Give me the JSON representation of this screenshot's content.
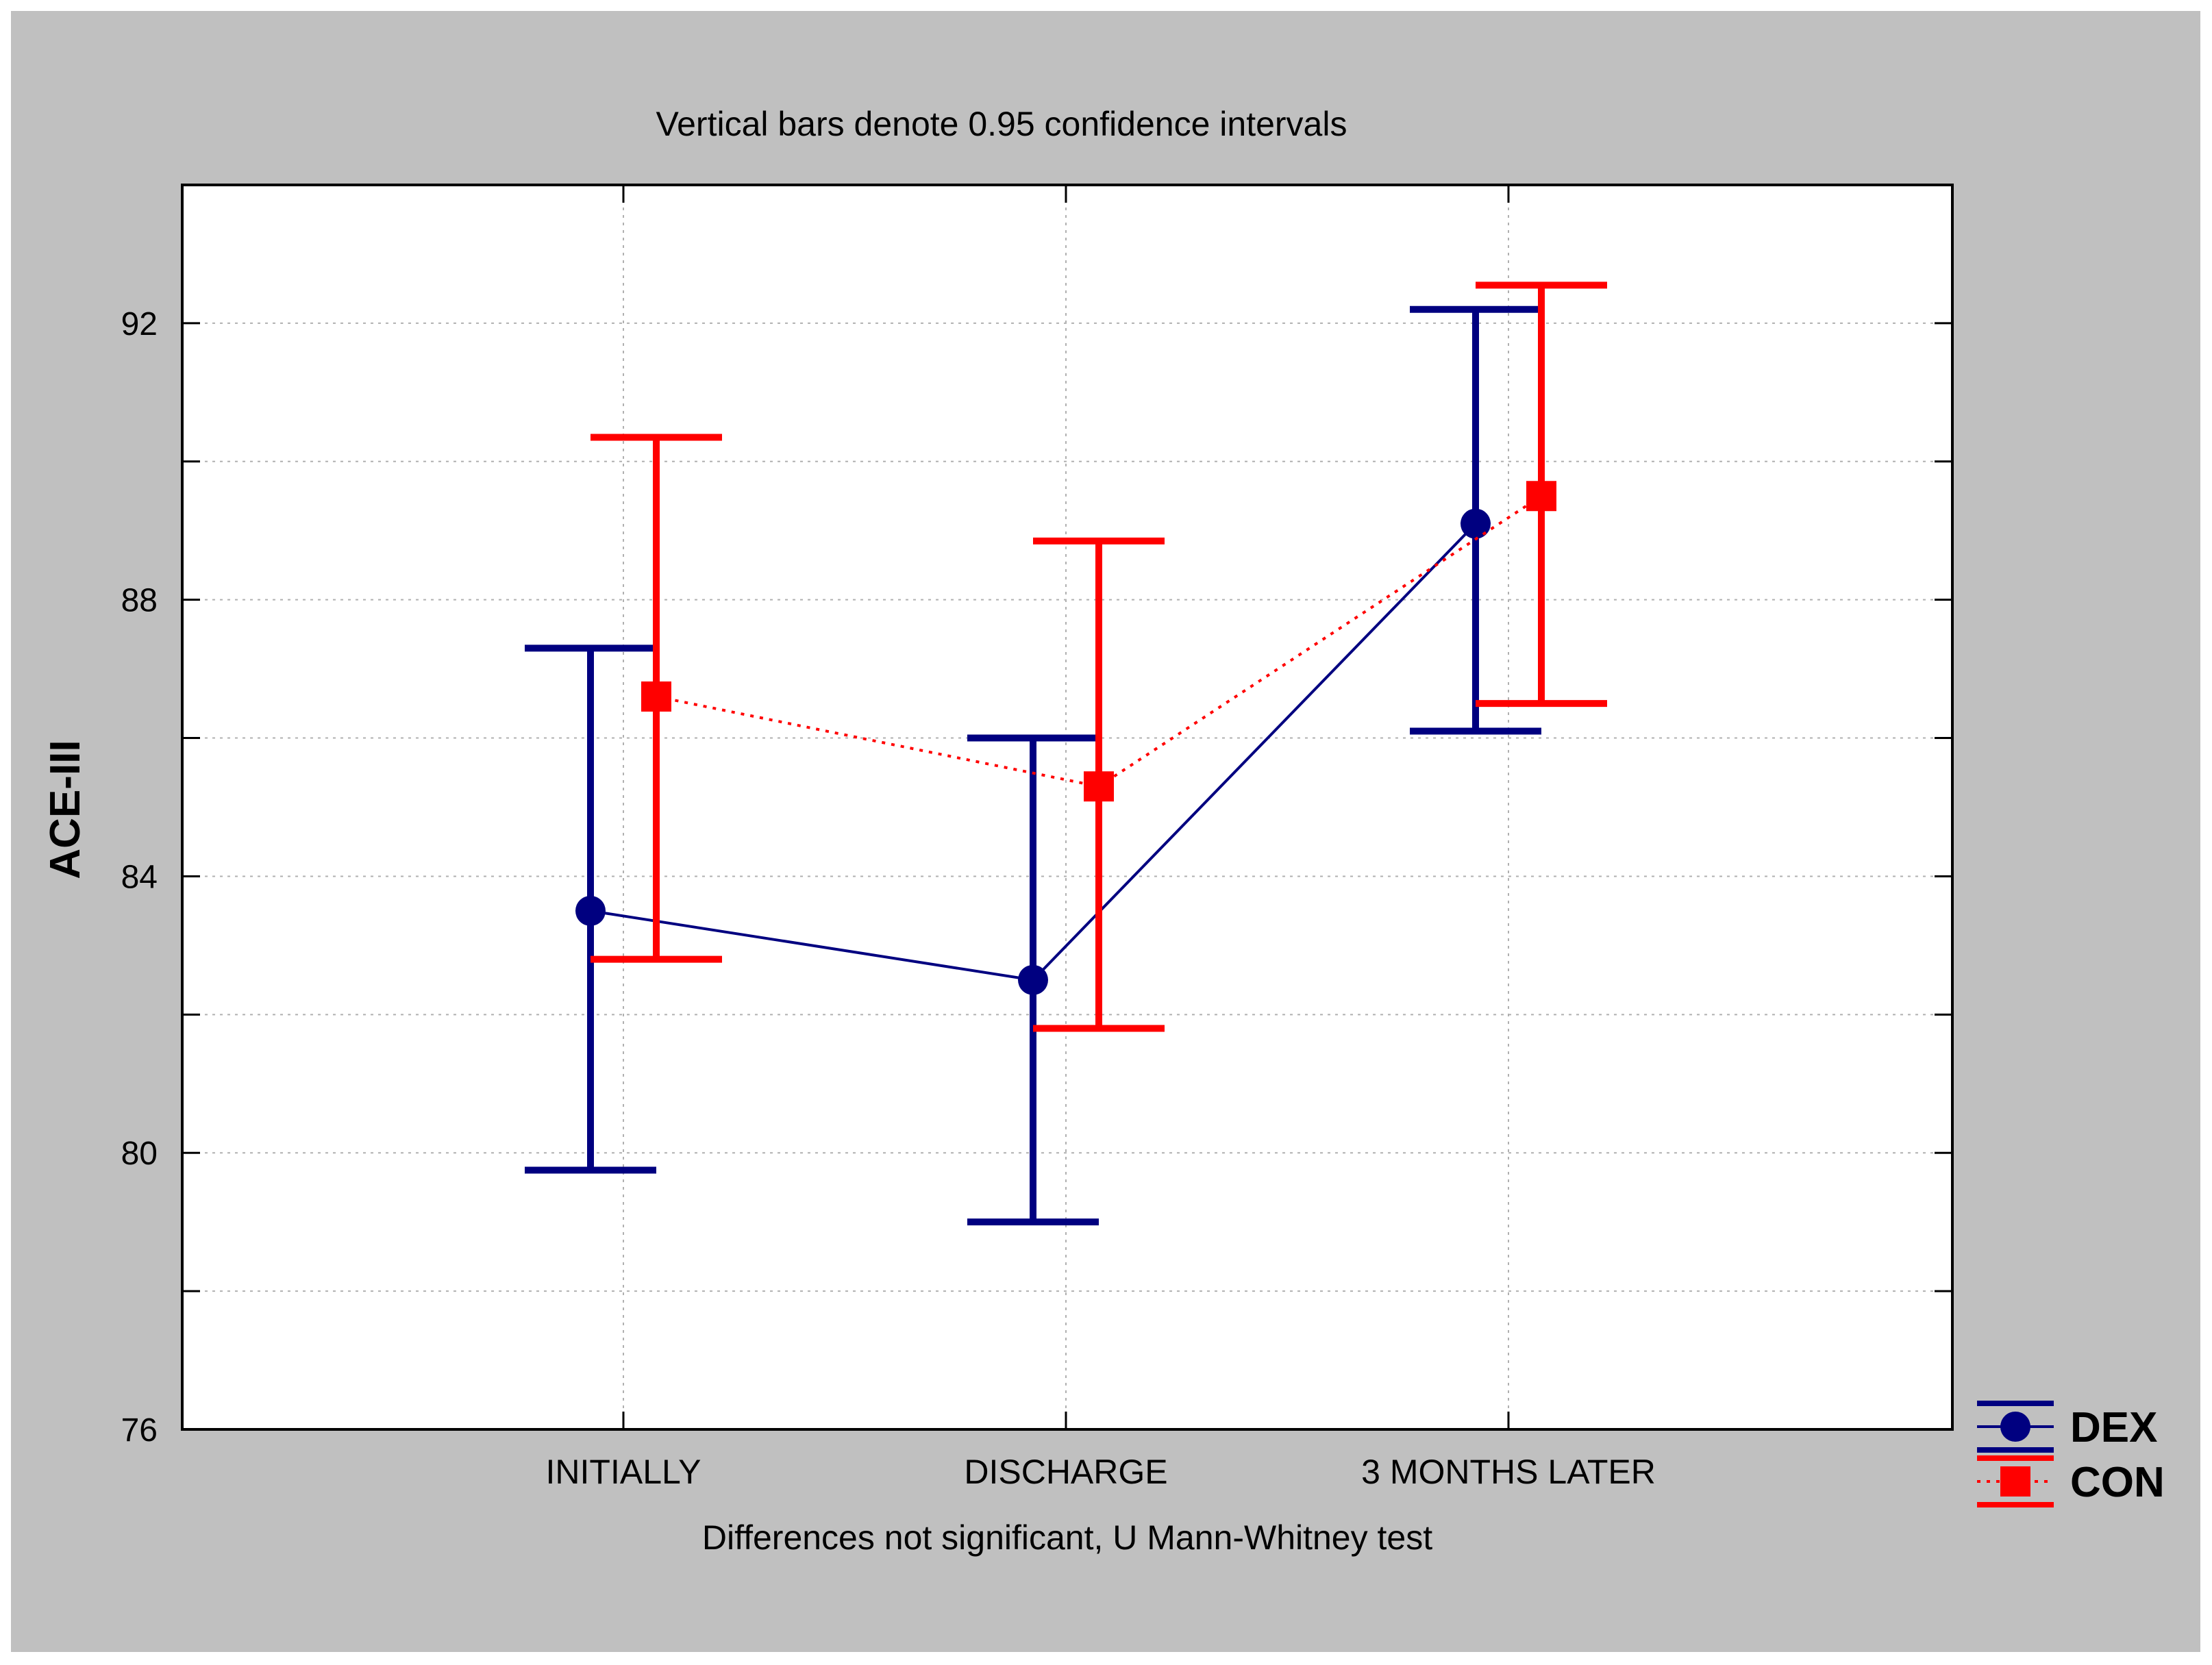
{
  "chart_data": {
    "type": "line",
    "title": "Vertical bars denote 0.95 confidence intervals",
    "xlabel": "Differences not significant, U Mann-Whitney test",
    "ylabel": "ACE-III",
    "categories": [
      "INITIALLY",
      "DISCHARGE",
      "3 MONTHS LATER"
    ],
    "ylim": [
      76,
      94
    ],
    "yticks": [
      76,
      80,
      84,
      88,
      92
    ],
    "y_minor_ticks": [
      78,
      82,
      86,
      90
    ],
    "grid": true,
    "legend_position": "bottom-right outside",
    "series": [
      {
        "name": "DEX",
        "color": "#000080",
        "marker": "circle",
        "line_style": "solid",
        "values": [
          83.5,
          82.5,
          89.1
        ],
        "ci_lower": [
          79.75,
          79.0,
          86.1
        ],
        "ci_upper": [
          87.3,
          86.0,
          92.2
        ]
      },
      {
        "name": "CON",
        "color": "#ff0000",
        "marker": "square",
        "line_style": "dotted",
        "values": [
          86.6,
          85.3,
          89.5
        ],
        "ci_lower": [
          82.8,
          81.8,
          86.5
        ],
        "ci_upper": [
          90.35,
          88.85,
          92.55
        ]
      }
    ]
  },
  "colors": {
    "frame_background": "#c0c0c0",
    "plot_background": "#ffffff",
    "gridline": "#b0b0b0"
  }
}
